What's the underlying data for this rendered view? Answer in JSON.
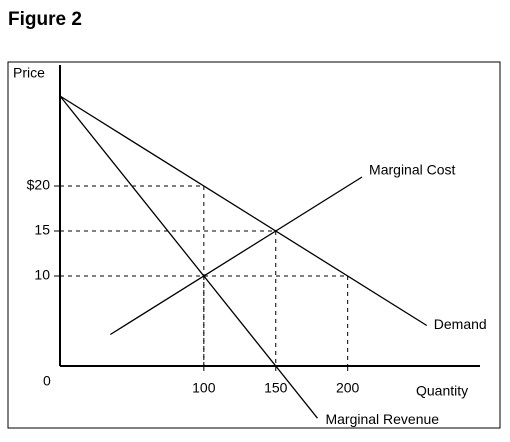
{
  "chart_data": {
    "type": "line",
    "title": "Figure 2",
    "y_label": "Price",
    "x_label": "Quantity",
    "origin_label": 0,
    "xlim": [
      0,
      292
    ],
    "ylim": [
      0,
      33
    ],
    "xticks": [
      100,
      150,
      200
    ],
    "yticks": [
      10,
      15,
      {
        "value": 20,
        "label": "$20"
      }
    ],
    "series": [
      {
        "name": "Demand",
        "color": "#000000",
        "x": [
          0,
          255
        ],
        "values": [
          30,
          4.5
        ]
      },
      {
        "name": "Marginal Revenue",
        "color": "#000000",
        "x": [
          0,
          179
        ],
        "values": [
          30,
          -5.8
        ]
      },
      {
        "name": "Marginal Cost",
        "color": "#000000",
        "x": [
          35,
          210
        ],
        "values": [
          3.5,
          21
        ]
      }
    ],
    "guides": {
      "x": [
        100,
        150,
        200,
        100
      ],
      "values": [
        20,
        15,
        10,
        10
      ]
    }
  }
}
